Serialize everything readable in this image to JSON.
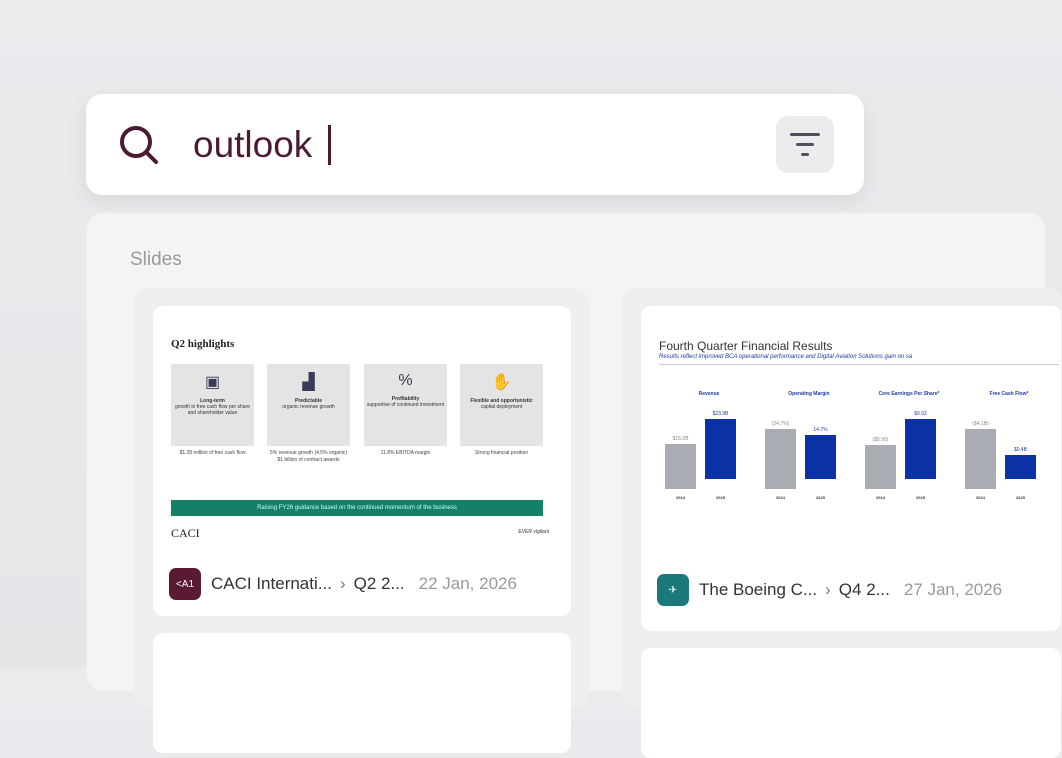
{
  "search": {
    "query": "outlook",
    "icon": "search-icon",
    "filter_icon": "filter-icon"
  },
  "results": {
    "section_title": "Slides",
    "cards": [
      {
        "company": "CACI Internati...",
        "document": "Q2 2...",
        "date": "22 Jan, 2026",
        "logo_text": "<A1",
        "logo_color": "#5a1a35",
        "slide": {
          "title": "Q2 highlights",
          "boxes": [
            {
              "icon": "money-icon",
              "heading": "Long-term",
              "text": "growth in free cash flow per share and shareholder value",
              "note": "$1.28 million of free cash flow"
            },
            {
              "icon": "chart-growth-icon",
              "heading": "Predictable",
              "text": "organic revenue growth",
              "note": "5% revenue growth (4.5% organic) $1 billion of contract awards"
            },
            {
              "icon": "percent-icon",
              "heading": "Profitability",
              "text": "supportive of continued investment",
              "note": "11.8% EBITDA margin"
            },
            {
              "icon": "hand-coin-icon",
              "heading": "Flexible and opportunistic",
              "text": "capital deployment",
              "note": "Strong financial position"
            }
          ],
          "banner": "Raising FY26 guidance based on the continued momentum of the business",
          "brand": "CACI",
          "footer": "EVER vigilant"
        }
      },
      {
        "company": "The Boeing C...",
        "document": "Q4 2...",
        "date": "27 Jan, 2026",
        "logo_color": "#1a7a7a",
        "slide": {
          "title": "Fourth Quarter Financial Results",
          "subtitle": "Results reflect improved BCA operational performance and Digital Aviation Solutions gain on sa",
          "metrics": [
            {
              "label": "Revenue",
              "prior": "$15.2B",
              "current": "$23.9B",
              "prior_value": 15.2,
              "current_value": 23.9
            },
            {
              "label": "Operating Margin",
              "prior": "(24.7%)",
              "current": "14.7%",
              "prior_value": -24.7,
              "current_value": 14.7
            },
            {
              "label": "Core Earnings Per Share*",
              "prior": "($5.90)",
              "current": "$9.92",
              "prior_value": -5.9,
              "current_value": 9.92
            },
            {
              "label": "Free Cash Flow*",
              "prior": "($4.1B)",
              "current": "$0.4B",
              "prior_value": -4.1,
              "current_value": 0.4
            }
          ],
          "years": [
            "2024",
            "2025"
          ]
        }
      }
    ]
  },
  "colors": {
    "accent": "#4a1a34",
    "prior_bar": "#a9adb3",
    "current_bar": "#0a31a5"
  }
}
